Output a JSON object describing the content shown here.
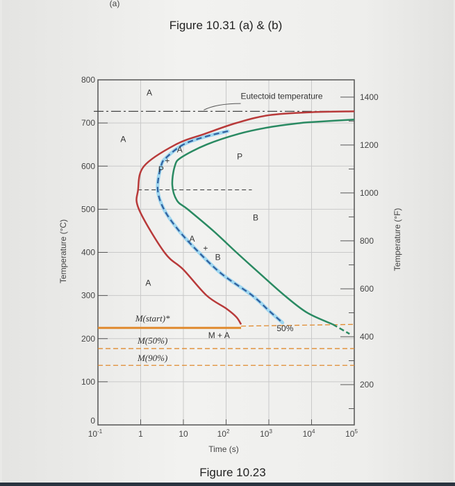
{
  "header": {
    "cut_label": "(a)",
    "title": "Figure 10.31 (a) & (b)"
  },
  "footer": {
    "caption": "Figure 10.23"
  },
  "chart_data": {
    "type": "line",
    "title": "",
    "xlabel": "Time (s)",
    "ylabel": "Temperature (°C)",
    "y2label": "Temperature (°F)",
    "xscale": "log",
    "xlim": [
      0.1,
      100000
    ],
    "ylim": [
      0,
      800
    ],
    "y2lim_F": [
      32,
      1472
    ],
    "grid": true,
    "x_ticks": [
      {
        "value": 0.1,
        "base": "10",
        "exp": "-1"
      },
      {
        "value": 1,
        "base": "1",
        "exp": ""
      },
      {
        "value": 10,
        "base": "10",
        "exp": ""
      },
      {
        "value": 100,
        "base": "10",
        "exp": "2"
      },
      {
        "value": 1000,
        "base": "10",
        "exp": "3"
      },
      {
        "value": 10000,
        "base": "10",
        "exp": "4"
      },
      {
        "value": 100000,
        "base": "10",
        "exp": "5"
      }
    ],
    "y_ticks": [
      "0",
      "100",
      "200",
      "300",
      "400",
      "500",
      "600",
      "700",
      "800"
    ],
    "y2_ticks": [
      "200",
      "400",
      "600",
      "800",
      "1000",
      "1200",
      "1400"
    ],
    "colors": {
      "start": "#b83a3a",
      "fifty": "#2f5f9e",
      "fifty_halo": "#9fd6ef",
      "end": "#2a8a62",
      "martensite": "#e08a2e",
      "axis": "#555555",
      "grid": "#c9c9c9"
    },
    "series": [
      {
        "key": "start",
        "style": "solid",
        "points": [
          [
            100000,
            727
          ],
          [
            10000,
            725
          ],
          [
            1000,
            718
          ],
          [
            174,
            700
          ],
          [
            32,
            675
          ],
          [
            6.6,
            650
          ],
          [
            1.2,
            600
          ],
          [
            0.87,
            545
          ],
          [
            0.91,
            500
          ],
          [
            3.6,
            400
          ],
          [
            10,
            360
          ],
          [
            35,
            300
          ],
          [
            100,
            270
          ],
          [
            174,
            250
          ],
          [
            224,
            233
          ]
        ]
      },
      {
        "key": "fifty",
        "style": "dashed",
        "points": [
          [
            110,
            681
          ],
          [
            32,
            668
          ],
          [
            10,
            650
          ],
          [
            4,
            620
          ],
          [
            3,
            600
          ],
          [
            2.5,
            547
          ],
          [
            3.5,
            500
          ],
          [
            7.9,
            450
          ],
          [
            23,
            400
          ],
          [
            79,
            350
          ],
          [
            410,
            300
          ],
          [
            1000,
            265
          ],
          [
            2090,
            237
          ]
        ]
      },
      {
        "key": "end",
        "style": "solid",
        "points": [
          [
            100000,
            708
          ],
          [
            10000,
            702
          ],
          [
            5600,
            700
          ],
          [
            1000,
            690
          ],
          [
            200,
            675
          ],
          [
            35,
            650
          ],
          [
            8.9,
            620
          ],
          [
            6.3,
            600
          ],
          [
            5.5,
            556
          ],
          [
            7.1,
            520
          ],
          [
            12.6,
            500
          ],
          [
            50,
            450
          ],
          [
            174,
            400
          ],
          [
            630,
            350
          ],
          [
            2340,
            300
          ],
          [
            7940,
            260
          ],
          [
            31600,
            233
          ]
        ],
        "dashed_tail": [
          [
            31600,
            233
          ],
          [
            77600,
            211
          ]
        ]
      }
    ],
    "horizontal_lines": [
      {
        "key": "eutectoid",
        "temp": 727,
        "from": 0.1,
        "to": 100000,
        "style": "dashdot"
      },
      {
        "key": "nose",
        "temp": 545,
        "from": 0.85,
        "to": 400,
        "style": "dashed"
      },
      {
        "key": "mstart",
        "temp": 225,
        "from": 0.1,
        "to": 224,
        "style": "solid",
        "ext_to": 100000
      },
      {
        "key": "m50",
        "temp": 177,
        "from": 0.1,
        "to": 100000,
        "style": "dashed"
      },
      {
        "key": "m90",
        "temp": 138,
        "from": 0.1,
        "to": 100000,
        "style": "dashed"
      }
    ],
    "annotations": [
      {
        "text": "A",
        "at": [
          1.6,
          764
        ]
      },
      {
        "text": "A",
        "at": [
          0.39,
          656
        ]
      },
      {
        "text": "P",
        "at": [
          209,
          616
        ]
      },
      {
        "text": "B",
        "at": [
          490,
          474
        ]
      },
      {
        "text": "A",
        "at": [
          1.5,
          323
        ]
      },
      {
        "text": "P",
        "at": [
          3.0,
          586
        ]
      },
      {
        "text": "+",
        "at": [
          4.2,
          606
        ]
      },
      {
        "text": "A",
        "at": [
          8.2,
          632
        ]
      },
      {
        "text": "A",
        "at": [
          16,
          425
        ]
      },
      {
        "text": "+",
        "at": [
          33,
          403
        ]
      },
      {
        "text": "B",
        "at": [
          64,
          382
        ]
      },
      {
        "text": "M + A",
        "at": [
          68,
          201
        ]
      },
      {
        "text": "50%",
        "at": [
          2400,
          217
        ]
      },
      {
        "text": "Eutectoid temperature",
        "at": [
          2000,
          756
        ]
      }
    ],
    "italic_annotations": [
      {
        "text": "M(start)*",
        "at": [
          1.9,
          240
        ]
      },
      {
        "text": "M(50%)",
        "at": [
          1.9,
          188
        ]
      },
      {
        "text": "M(90%)",
        "at": [
          1.9,
          148
        ]
      }
    ]
  }
}
